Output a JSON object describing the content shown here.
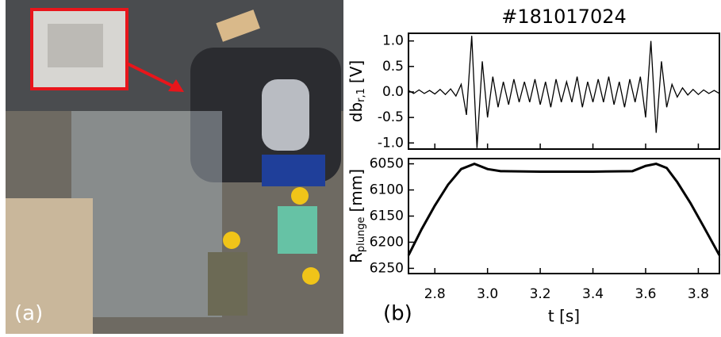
{
  "panels": {
    "a": "(a)",
    "b": "(b)"
  },
  "chart_data": [
    {
      "type": "line",
      "title": "#181017024",
      "ylabel": [
        "db",
        "r,1",
        "[V]"
      ],
      "color": "#000000",
      "xlim": [
        2.7,
        3.88
      ],
      "ylim": [
        -1.12,
        1.15
      ],
      "yticks": [
        {
          "value": -1,
          "label": "-1.0"
        },
        -0.5,
        {
          "value": 0,
          "label": "0.0"
        },
        0.5,
        {
          "value": 1,
          "label": "1.0"
        }
      ],
      "x": [
        2.7,
        2.72,
        2.74,
        2.76,
        2.78,
        2.8,
        2.82,
        2.84,
        2.86,
        2.88,
        2.9,
        2.92,
        2.94,
        2.96,
        2.98,
        3.0,
        3.02,
        3.04,
        3.06,
        3.08,
        3.1,
        3.12,
        3.14,
        3.16,
        3.18,
        3.2,
        3.22,
        3.24,
        3.26,
        3.28,
        3.3,
        3.32,
        3.34,
        3.36,
        3.38,
        3.4,
        3.42,
        3.44,
        3.46,
        3.48,
        3.5,
        3.52,
        3.54,
        3.56,
        3.58,
        3.6,
        3.62,
        3.64,
        3.66,
        3.68,
        3.7,
        3.72,
        3.74,
        3.76,
        3.78,
        3.8,
        3.82,
        3.84,
        3.86,
        3.88
      ],
      "values": [
        0.03,
        -0.03,
        0.04,
        -0.03,
        0.03,
        -0.04,
        0.05,
        -0.05,
        0.06,
        -0.08,
        0.15,
        -0.45,
        1.1,
        -1.1,
        0.6,
        -0.5,
        0.3,
        -0.3,
        0.2,
        -0.25,
        0.25,
        -0.2,
        0.2,
        -0.2,
        0.25,
        -0.25,
        0.2,
        -0.3,
        0.25,
        -0.2,
        0.2,
        -0.2,
        0.3,
        -0.3,
        0.2,
        -0.2,
        0.25,
        -0.2,
        0.3,
        -0.25,
        0.2,
        -0.3,
        0.25,
        -0.2,
        0.3,
        -0.5,
        1.0,
        -0.8,
        0.6,
        -0.3,
        0.15,
        -0.1,
        0.08,
        -0.06,
        0.05,
        -0.05,
        0.04,
        -0.03,
        0.03,
        -0.03
      ]
    },
    {
      "type": "line",
      "ylabel": [
        "R",
        "plunge",
        "[mm]"
      ],
      "xlabel": "t [s]",
      "color": "#000000",
      "xlim": [
        2.7,
        3.88
      ],
      "ylim": [
        6260,
        6040
      ],
      "xticks": [
        2.8,
        {
          "value": 3,
          "label": "3.0"
        },
        3.2,
        3.4,
        3.6,
        3.8
      ],
      "yticks": [
        6050,
        6100,
        6150,
        6200,
        6250
      ],
      "x": [
        2.7,
        2.75,
        2.8,
        2.85,
        2.9,
        2.95,
        3.0,
        3.05,
        3.2,
        3.4,
        3.55,
        3.6,
        3.64,
        3.68,
        3.72,
        3.77,
        3.82,
        3.88
      ],
      "values": [
        6225,
        6175,
        6130,
        6090,
        6060,
        6050,
        6060,
        6064,
        6065,
        6065,
        6064,
        6054,
        6050,
        6058,
        6085,
        6125,
        6170,
        6225
      ]
    }
  ]
}
